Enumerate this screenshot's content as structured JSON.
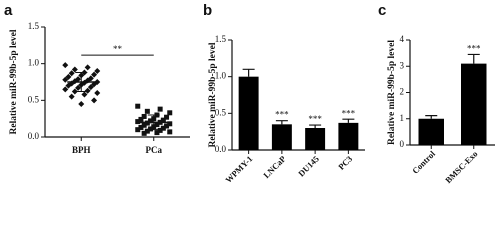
{
  "chart_data": [
    {
      "type": "strip",
      "panel_label": "a",
      "ylabel": "Relative miR-99b-5p level",
      "categories": [
        "BPH",
        "PCa"
      ],
      "groups": [
        {
          "marker": "diamond",
          "color": "#111111",
          "mean": 0.75,
          "sd": 0.13,
          "values": [
            0.98,
            0.95,
            0.92,
            0.9,
            0.88,
            0.87,
            0.85,
            0.84,
            0.82,
            0.8,
            0.79,
            0.78,
            0.77,
            0.76,
            0.75,
            0.74,
            0.73,
            0.72,
            0.71,
            0.7,
            0.68,
            0.67,
            0.65,
            0.63,
            0.62,
            0.6,
            0.58,
            0.55,
            0.5,
            0.45
          ]
        },
        {
          "marker": "square",
          "color": "#111111",
          "mean": 0.2,
          "sd": 0.1,
          "values": [
            0.42,
            0.38,
            0.35,
            0.33,
            0.3,
            0.28,
            0.27,
            0.25,
            0.24,
            0.23,
            0.22,
            0.21,
            0.2,
            0.19,
            0.18,
            0.17,
            0.16,
            0.15,
            0.14,
            0.13,
            0.12,
            0.11,
            0.1,
            0.09,
            0.08,
            0.07,
            0.06,
            0.05
          ]
        }
      ],
      "significance": "**",
      "ylim": [
        0,
        1.5
      ],
      "yticks": [
        {
          "value": 0,
          "label": "0.0"
        },
        0.5,
        {
          "value": 1,
          "label": "1.0"
        },
        1.5
      ],
      "xtick_rotation": 0
    },
    {
      "type": "bar",
      "panel_label": "b",
      "ylabel": "Relative miR-99b-5p level",
      "categories": [
        "WPMY-1",
        "LNCaP",
        "DU145",
        "PC3"
      ],
      "values": [
        1.0,
        0.35,
        0.3,
        0.37
      ],
      "errors": [
        0.1,
        0.05,
        0.04,
        0.05
      ],
      "significance": [
        null,
        "***",
        "***",
        "***"
      ],
      "color": "#000000",
      "ylim": [
        0,
        1.5
      ],
      "yticks": [
        {
          "value": 0,
          "label": "0.0"
        },
        0.5,
        {
          "value": 1,
          "label": "1.0"
        },
        1.5
      ],
      "xtick_rotation": 45
    },
    {
      "type": "bar",
      "panel_label": "c",
      "ylabel": "Relative miR-99b-5p level",
      "categories": [
        "Control",
        "BMSC-Exo"
      ],
      "values": [
        1.0,
        3.1
      ],
      "errors": [
        0.12,
        0.35
      ],
      "significance": [
        null,
        "***"
      ],
      "color": "#000000",
      "ylim": [
        0,
        4
      ],
      "yticks": [
        0,
        1,
        2,
        3,
        4
      ],
      "xtick_rotation": 45
    }
  ]
}
